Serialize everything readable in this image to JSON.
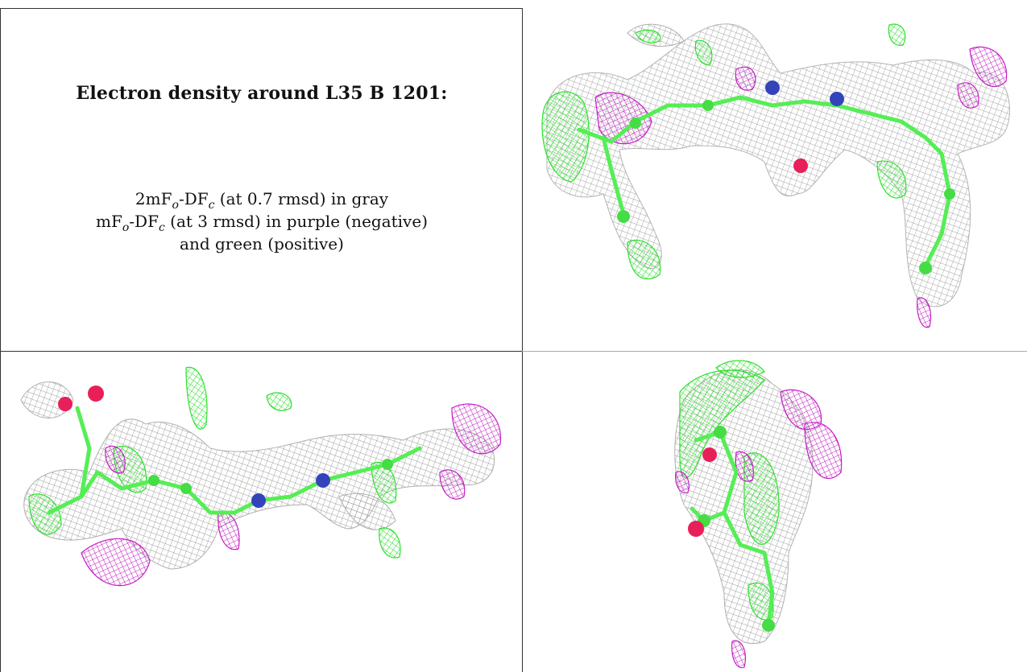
{
  "caption": {
    "title": "Electron density around L35 B 1201:",
    "line1_a": "2mF",
    "line1_sub_o": "o",
    "line1_b": "-DF",
    "line1_sub_c": "c",
    "line1_c": " (at 0.7 rmsd) in gray",
    "line2_a": "mF",
    "line2_sub_o": "o",
    "line2_b": "-DF",
    "line2_sub_c": "c",
    "line2_c": " (at 3 rmsd) in purple (negative)",
    "line3": "and green (positive)"
  },
  "panels": [
    {
      "view": "view-1-top-right"
    },
    {
      "view": "view-2-bottom-left"
    },
    {
      "view": "view-3-bottom-right"
    }
  ],
  "colors": {
    "mesh_gray": "#a8a8a8",
    "positive_green": "#33ee33",
    "negative_purple": "#cc22cc",
    "carbon": "#5af25a",
    "nitrogen": "#3344bb",
    "oxygen": "#e8205a",
    "border": "#333333"
  }
}
